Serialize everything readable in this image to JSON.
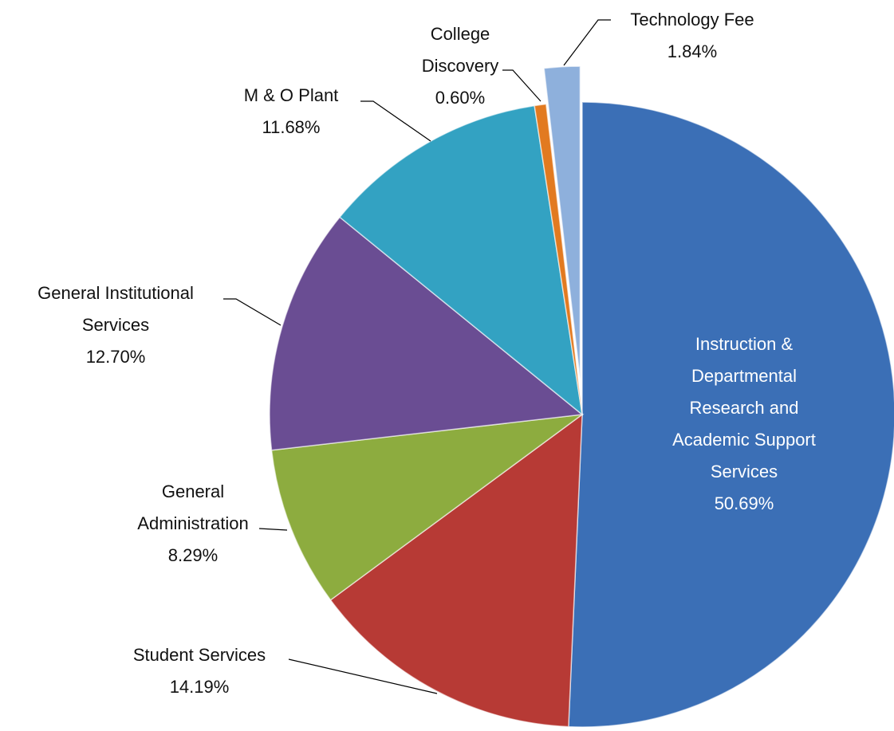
{
  "chart_data": {
    "type": "pie",
    "categories": [
      "Instruction & Departmental Research and Academic Support Services",
      "Student Services",
      "General Administration",
      "General Institutional Services",
      "M & O Plant",
      "College Discovery",
      "Technology Fee"
    ],
    "values": [
      50.69,
      14.19,
      8.29,
      12.7,
      11.68,
      0.6,
      1.84
    ],
    "value_labels": [
      "50.69%",
      "14.19%",
      "8.29%",
      "12.70%",
      "11.68%",
      "0.60%",
      "1.84%"
    ],
    "colors": [
      "#3b6fb6",
      "#b73a35",
      "#8dac3f",
      "#6a4d93",
      "#33a2c2",
      "#e27a20",
      "#8eb0dc"
    ]
  }
}
